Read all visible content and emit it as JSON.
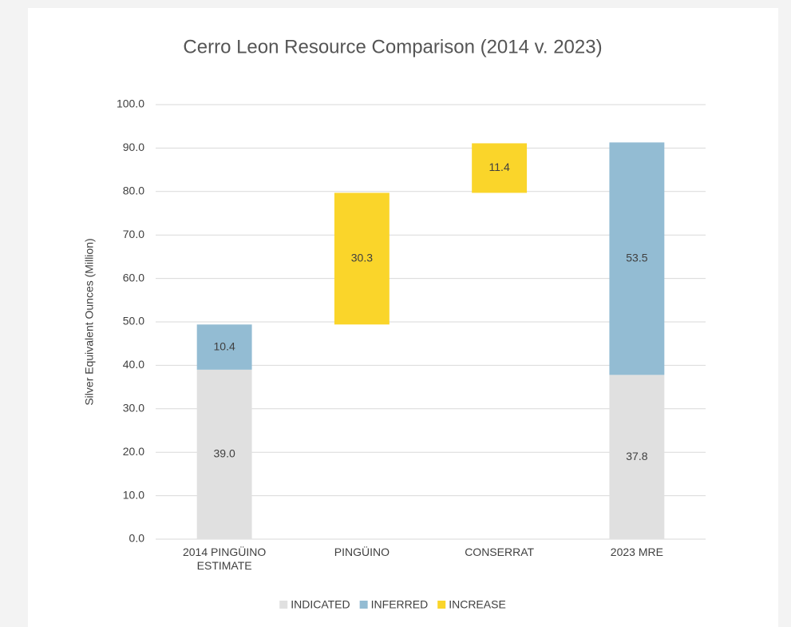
{
  "chart_data": {
    "type": "waterfall",
    "title": "Cerro Leon Resource Comparison (2014 v. 2023)",
    "y_label": "Silver Equivalent Ounces (Million)",
    "categories": [
      "2014 PINGÜINO ESTIMATE",
      "PINGÜINO",
      "CONSERRAT",
      "2023 MRE"
    ],
    "series": [
      {
        "name": "INDICATED",
        "color": "#e0e0e0",
        "values": [
          39.0,
          null,
          null,
          37.8
        ],
        "value_labels": [
          "39.0",
          null,
          null,
          "37.8"
        ]
      },
      {
        "name": "INFERRED",
        "color": "#93bcd3",
        "values": [
          10.4,
          null,
          null,
          53.5
        ],
        "value_labels": [
          "10.4",
          null,
          null,
          "53.5"
        ]
      },
      {
        "name": "INCREASE",
        "color": "#fad52a",
        "values": [
          null,
          30.3,
          11.4,
          null
        ],
        "value_labels": [
          null,
          "30.3",
          "11.4",
          null
        ]
      }
    ],
    "ylim": [
      0,
      100
    ],
    "yticks": [
      {
        "value": 0,
        "label": "0.0"
      },
      {
        "value": 10,
        "label": "10.0"
      },
      {
        "value": 20,
        "label": "20.0"
      },
      {
        "value": 30,
        "label": "30.0"
      },
      {
        "value": 40,
        "label": "40.0"
      },
      {
        "value": 50,
        "label": "50.0"
      },
      {
        "value": 60,
        "label": "60.0"
      },
      {
        "value": 70,
        "label": "70.0"
      },
      {
        "value": 80,
        "label": "80.0"
      },
      {
        "value": 90,
        "label": "90.0"
      },
      {
        "value": 100,
        "label": "100.0"
      }
    ],
    "grid": true,
    "legend": "bottom"
  }
}
